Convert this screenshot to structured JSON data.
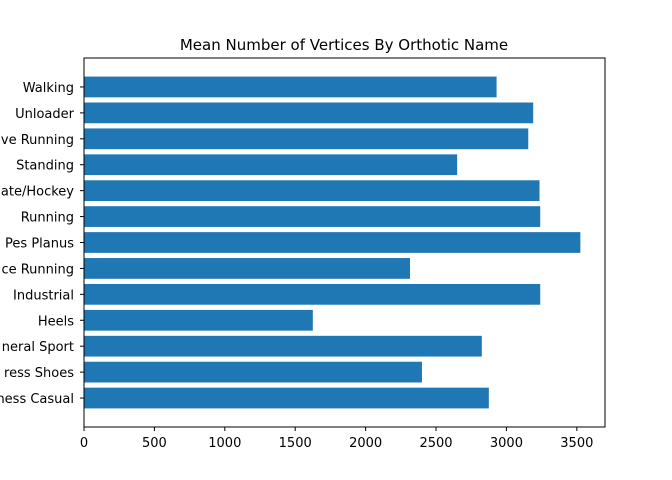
{
  "chart_data": {
    "type": "bar",
    "orientation": "horizontal",
    "title": "Mean Number of Vertices By Orthotic Name",
    "xlabel": "",
    "ylabel": "",
    "categories": [
      "Walking",
      "Unloader",
      "ve Running",
      "Standing",
      "ate/Hockey",
      "Running",
      "Pes Planus",
      "ce Running",
      "Industrial",
      "Heels",
      "neral Sport",
      "ress Shoes",
      "ness Casual"
    ],
    "values": [
      2930,
      3190,
      3155,
      2650,
      3235,
      3240,
      3525,
      2315,
      3240,
      1625,
      2825,
      2400,
      2875
    ],
    "xlim": [
      0,
      3700
    ],
    "xticks": [
      0,
      500,
      1000,
      1500,
      2000,
      2500,
      3000,
      3500
    ],
    "bar_color": "#1f77b4",
    "grid": false,
    "legend": "none"
  }
}
